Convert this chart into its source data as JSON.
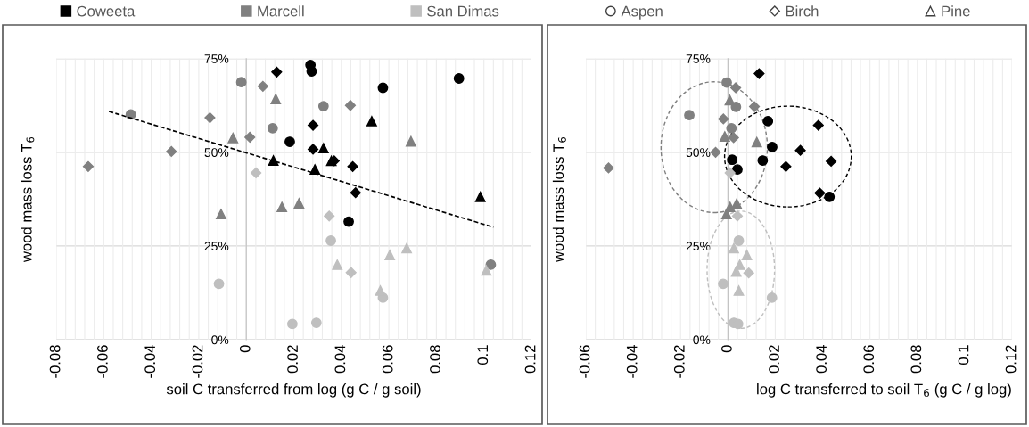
{
  "chart_data": [
    {
      "type": "scatter",
      "xlabel": "soil C transferred from log (g C / g soil)",
      "ylabel": "wood mass loss T$_{6}$",
      "xlim": [
        -0.08,
        0.12
      ],
      "ylim": [
        0,
        75
      ],
      "xticks": [
        -0.08,
        -0.06,
        -0.04,
        -0.02,
        0,
        0.02,
        0.04,
        0.06,
        0.08,
        0.1,
        0.12
      ],
      "yticks": [
        {
          "value": 0,
          "label": "0%"
        },
        {
          "value": 25,
          "label": "25%"
        },
        {
          "value": 50,
          "label": "50%"
        },
        {
          "value": 75,
          "label": "75%"
        }
      ],
      "grid": true,
      "legend": "top",
      "series": [
        {
          "name": "Coweeta",
          "color": "#000000",
          "marker": "square"
        },
        {
          "name": "Marcell",
          "color": "#808080",
          "marker": "square"
        },
        {
          "name": "San Dimas",
          "color": "#bfbfbf",
          "marker": "square"
        },
        {
          "name": "Aspen",
          "color": "#ffffff",
          "marker": "circle"
        },
        {
          "name": "Birch",
          "color": "#ffffff",
          "marker": "diamond"
        },
        {
          "name": "Pine",
          "color": "#ffffff",
          "marker": "triangle"
        },
        {
          "color": "#808080",
          "marker": "circle",
          "x": [
            -0.0486,
            -0.0021,
            0.0111,
            0.0325,
            0.1029
          ],
          "values": [
            60.1,
            68.7,
            56.4,
            62.3,
            20.0
          ]
        },
        {
          "color": "#808080",
          "marker": "diamond",
          "x": [
            -0.0665,
            -0.0315,
            -0.0153,
            0.0015,
            0.007,
            0.0438
          ],
          "values": [
            46.2,
            50.2,
            59.2,
            54.0,
            67.6,
            62.5
          ]
        },
        {
          "color": "#808080",
          "marker": "triangle",
          "x": [
            -0.0056,
            0.0124,
            -0.0106,
            0.015,
            0.0222,
            0.0693
          ],
          "values": [
            53.8,
            64.2,
            33.5,
            35.4,
            36.4,
            52.9
          ]
        },
        {
          "color": "#000000",
          "marker": "circle",
          "x": [
            0.027,
            0.0275,
            0.0895,
            0.0575,
            0.0183,
            0.0431
          ],
          "values": [
            73.3,
            71.6,
            69.7,
            67.2,
            52.8,
            31.5
          ]
        },
        {
          "color": "#000000",
          "marker": "diamond",
          "x": [
            0.0128,
            0.0281,
            0.0281,
            0.037,
            0.0448,
            0.046
          ],
          "values": [
            71.4,
            57.2,
            50.8,
            47.7,
            46.2,
            39.2
          ]
        },
        {
          "color": "#000000",
          "marker": "triangle",
          "x": [
            0.0114,
            0.0528,
            0.0325,
            0.0358,
            0.0289,
            0.0985
          ],
          "values": [
            47.8,
            58.3,
            51.1,
            47.7,
            45.4,
            38.1
          ]
        },
        {
          "color": "#bfbfbf",
          "marker": "circle",
          "x": [
            -0.0115,
            0.0194,
            0.0356,
            0.0575,
            0.0295
          ],
          "values": [
            14.9,
            4.2,
            26.4,
            11.2,
            4.5
          ]
        },
        {
          "color": "#bfbfbf",
          "marker": "diamond",
          "x": [
            0.0041,
            0.0349,
            0.0441
          ],
          "values": [
            44.5,
            33.0,
            17.9
          ]
        },
        {
          "color": "#bfbfbf",
          "marker": "triangle",
          "x": [
            0.0383,
            0.0604,
            0.0675,
            0.0564,
            0.101
          ],
          "values": [
            20.0,
            22.6,
            24.4,
            13.1,
            18.5
          ]
        },
        {
          "type": "line",
          "color": "#000000",
          "line_style": "dashed",
          "marker": "none",
          "x": [
            -0.0578,
            0.104
          ],
          "values": [
            60.9,
            30.0
          ]
        }
      ]
    },
    {
      "type": "scatter",
      "xlabel": "log C transferred to soil T$_{6}$ (g C / g log)",
      "ylabel": "wood mass loss T$_{6}$",
      "xlim": [
        -0.06,
        0.12
      ],
      "ylim": [
        0,
        75
      ],
      "xticks": [
        -0.06,
        -0.04,
        -0.02,
        0,
        0.02,
        0.04,
        0.06,
        0.08,
        0.1,
        0.12
      ],
      "yticks": [
        {
          "value": 0,
          "label": "0%"
        },
        {
          "value": 25,
          "label": "25%"
        },
        {
          "value": 50,
          "label": "50%"
        },
        {
          "value": 75,
          "label": "75%"
        }
      ],
      "grid": true,
      "series": [
        {
          "color": "#808080",
          "marker": "circle",
          "x": [
            -0.0163,
            -0.0005,
            0.0034,
            0.0015
          ],
          "values": [
            59.9,
            68.6,
            62.1,
            56.4
          ]
        },
        {
          "color": "#808080",
          "marker": "diamond",
          "x": [
            -0.0504,
            -0.0052,
            -0.0019,
            0.0033,
            0.0112,
            0.0024
          ],
          "values": [
            45.8,
            50.0,
            58.9,
            67.2,
            62.2,
            53.9
          ]
        },
        {
          "color": "#808080",
          "marker": "triangle",
          "x": [
            0.0008,
            -0.0013,
            0.0122,
            -0.0006,
            0.0009,
            0.0037
          ],
          "values": [
            63.9,
            54.2,
            52.7,
            33.5,
            35.4,
            36.3
          ]
        },
        {
          "color": "#000000",
          "marker": "circle",
          "x": [
            0.0169,
            0.0187,
            0.0018,
            0.004,
            0.0147,
            0.0429
          ],
          "values": [
            58.3,
            51.4,
            48.0,
            45.4,
            47.8,
            38.1
          ]
        },
        {
          "color": "#000000",
          "marker": "diamond",
          "x": [
            0.0132,
            0.0245,
            0.0382,
            0.0306,
            0.0436,
            0.0388
          ],
          "values": [
            71.0,
            46.2,
            57.2,
            50.5,
            47.6,
            39.1
          ]
        },
        {
          "color": "#bfbfbf",
          "marker": "circle",
          "x": [
            0.0046,
            -0.002,
            0.0186,
            0.0025,
            0.0043
          ],
          "values": [
            26.4,
            14.9,
            11.2,
            4.5,
            4.2
          ]
        },
        {
          "color": "#bfbfbf",
          "marker": "diamond",
          "x": [
            0.0009,
            0.004,
            0.0088
          ],
          "values": [
            44.5,
            33.0,
            17.8
          ]
        },
        {
          "color": "#bfbfbf",
          "marker": "triangle",
          "x": [
            0.0025,
            0.008,
            0.005,
            0.0035,
            0.0046
          ],
          "values": [
            24.4,
            22.6,
            20.0,
            18.2,
            13.1
          ]
        }
      ]
    }
  ]
}
